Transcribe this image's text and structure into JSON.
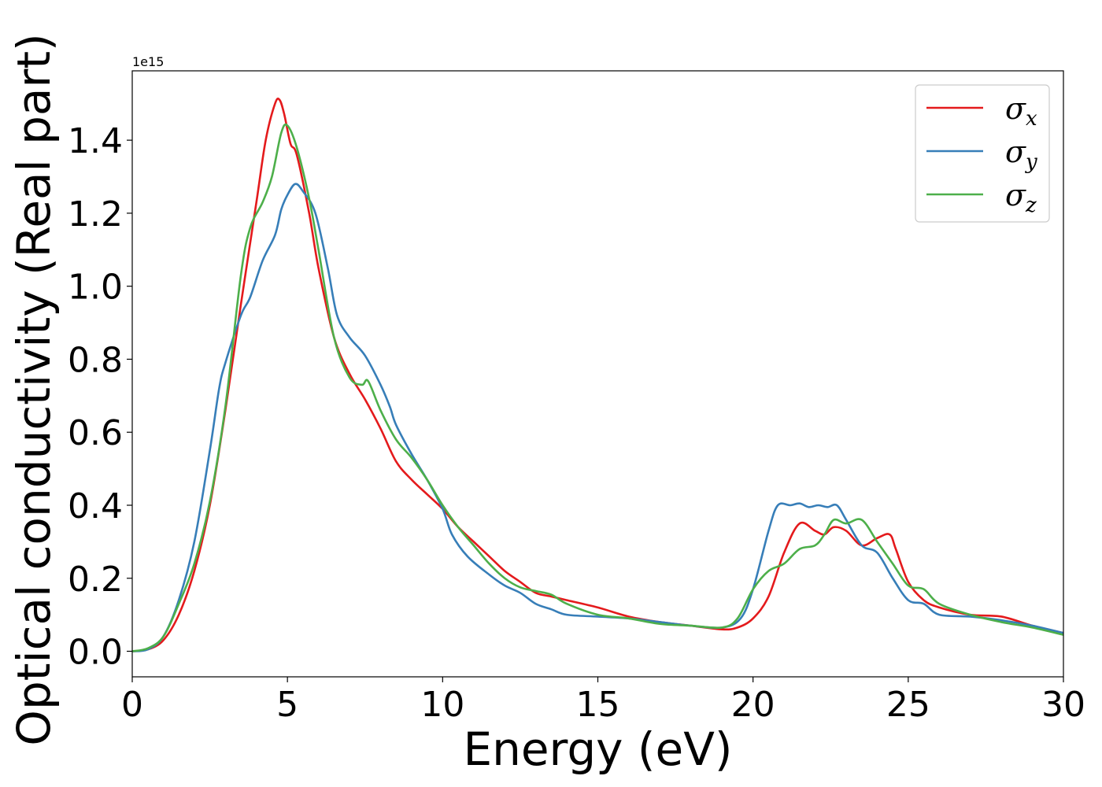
{
  "chart_data": {
    "type": "line",
    "xlabel": "Energy (eV)",
    "ylabel": "Optical conductivity (Real part)",
    "y_offset_label": "1e15",
    "xlim": [
      0,
      30
    ],
    "ylim": [
      -0.07,
      1.59
    ],
    "xticks": [
      0,
      5,
      10,
      15,
      20,
      25,
      30
    ],
    "xtick_labels": [
      "0",
      "5",
      "10",
      "15",
      "20",
      "25",
      "30"
    ],
    "yticks": [
      0.0,
      0.2,
      0.4,
      0.6,
      0.8,
      1.0,
      1.2,
      1.4
    ],
    "ytick_labels": [
      "0.0",
      "0.2",
      "0.4",
      "0.6",
      "0.8",
      "1.0",
      "1.2",
      "1.4"
    ],
    "grid": false,
    "legend_position": "top-right",
    "series": [
      {
        "name": "σx",
        "symbol": "σ",
        "subscript": "x",
        "color": "#e41a1c",
        "points": [
          [
            0,
            0.0
          ],
          [
            0.5,
            0.005
          ],
          [
            1.0,
            0.03
          ],
          [
            1.5,
            0.1
          ],
          [
            2.0,
            0.22
          ],
          [
            2.5,
            0.4
          ],
          [
            3.0,
            0.66
          ],
          [
            3.5,
            0.95
          ],
          [
            4.0,
            1.23
          ],
          [
            4.3,
            1.4
          ],
          [
            4.6,
            1.5
          ],
          [
            4.75,
            1.51
          ],
          [
            4.9,
            1.47
          ],
          [
            5.1,
            1.39
          ],
          [
            5.3,
            1.36
          ],
          [
            5.7,
            1.2
          ],
          [
            6.0,
            1.05
          ],
          [
            6.5,
            0.86
          ],
          [
            7.0,
            0.76
          ],
          [
            7.5,
            0.69
          ],
          [
            8.0,
            0.61
          ],
          [
            8.5,
            0.52
          ],
          [
            9.0,
            0.47
          ],
          [
            9.5,
            0.43
          ],
          [
            10.0,
            0.39
          ],
          [
            10.5,
            0.34
          ],
          [
            11.0,
            0.3
          ],
          [
            11.5,
            0.26
          ],
          [
            12.0,
            0.22
          ],
          [
            12.5,
            0.19
          ],
          [
            13.0,
            0.16
          ],
          [
            13.5,
            0.15
          ],
          [
            14.0,
            0.14
          ],
          [
            15.0,
            0.12
          ],
          [
            16.0,
            0.095
          ],
          [
            17.0,
            0.08
          ],
          [
            18.0,
            0.07
          ],
          [
            19.0,
            0.06
          ],
          [
            19.5,
            0.065
          ],
          [
            20.0,
            0.09
          ],
          [
            20.5,
            0.15
          ],
          [
            21.0,
            0.27
          ],
          [
            21.5,
            0.35
          ],
          [
            22.0,
            0.33
          ],
          [
            22.3,
            0.32
          ],
          [
            22.6,
            0.34
          ],
          [
            23.0,
            0.33
          ],
          [
            23.5,
            0.29
          ],
          [
            24.0,
            0.31
          ],
          [
            24.4,
            0.32
          ],
          [
            24.6,
            0.28
          ],
          [
            25.0,
            0.19
          ],
          [
            25.5,
            0.14
          ],
          [
            26.0,
            0.12
          ],
          [
            27.0,
            0.1
          ],
          [
            28.0,
            0.095
          ],
          [
            29.0,
            0.07
          ],
          [
            30.0,
            0.05
          ]
        ]
      },
      {
        "name": "σy",
        "symbol": "σ",
        "subscript": "y",
        "color": "#377eb8",
        "points": [
          [
            0,
            0.0
          ],
          [
            0.5,
            0.005
          ],
          [
            1.0,
            0.04
          ],
          [
            1.5,
            0.14
          ],
          [
            2.0,
            0.3
          ],
          [
            2.5,
            0.55
          ],
          [
            2.8,
            0.72
          ],
          [
            3.0,
            0.79
          ],
          [
            3.5,
            0.92
          ],
          [
            3.8,
            0.97
          ],
          [
            4.2,
            1.07
          ],
          [
            4.6,
            1.14
          ],
          [
            4.8,
            1.21
          ],
          [
            5.0,
            1.25
          ],
          [
            5.25,
            1.28
          ],
          [
            5.5,
            1.26
          ],
          [
            5.9,
            1.2
          ],
          [
            6.3,
            1.05
          ],
          [
            6.6,
            0.92
          ],
          [
            7.0,
            0.86
          ],
          [
            7.5,
            0.81
          ],
          [
            8.0,
            0.73
          ],
          [
            8.3,
            0.67
          ],
          [
            8.5,
            0.62
          ],
          [
            9.0,
            0.54
          ],
          [
            9.5,
            0.47
          ],
          [
            10.0,
            0.39
          ],
          [
            10.3,
            0.32
          ],
          [
            10.8,
            0.26
          ],
          [
            11.5,
            0.21
          ],
          [
            12.0,
            0.18
          ],
          [
            12.5,
            0.16
          ],
          [
            13.0,
            0.13
          ],
          [
            13.5,
            0.115
          ],
          [
            14.0,
            0.1
          ],
          [
            15.0,
            0.095
          ],
          [
            16.0,
            0.09
          ],
          [
            17.0,
            0.08
          ],
          [
            18.0,
            0.07
          ],
          [
            19.0,
            0.065
          ],
          [
            19.6,
            0.09
          ],
          [
            20.0,
            0.17
          ],
          [
            20.5,
            0.33
          ],
          [
            20.8,
            0.4
          ],
          [
            21.2,
            0.4
          ],
          [
            21.5,
            0.405
          ],
          [
            21.8,
            0.395
          ],
          [
            22.1,
            0.4
          ],
          [
            22.4,
            0.395
          ],
          [
            22.7,
            0.4
          ],
          [
            23.0,
            0.36
          ],
          [
            23.5,
            0.29
          ],
          [
            24.0,
            0.27
          ],
          [
            24.5,
            0.2
          ],
          [
            25.0,
            0.14
          ],
          [
            25.5,
            0.13
          ],
          [
            26.0,
            0.1
          ],
          [
            27.0,
            0.095
          ],
          [
            28.0,
            0.085
          ],
          [
            29.0,
            0.07
          ],
          [
            30.0,
            0.05
          ]
        ]
      },
      {
        "name": "σz",
        "symbol": "σ",
        "subscript": "z",
        "color": "#4daf4a",
        "points": [
          [
            0,
            0.0
          ],
          [
            0.5,
            0.008
          ],
          [
            1.0,
            0.04
          ],
          [
            1.5,
            0.13
          ],
          [
            2.0,
            0.24
          ],
          [
            2.5,
            0.41
          ],
          [
            3.0,
            0.67
          ],
          [
            3.5,
            1.03
          ],
          [
            3.8,
            1.16
          ],
          [
            4.2,
            1.23
          ],
          [
            4.5,
            1.3
          ],
          [
            4.8,
            1.42
          ],
          [
            5.0,
            1.44
          ],
          [
            5.3,
            1.38
          ],
          [
            5.7,
            1.24
          ],
          [
            6.0,
            1.1
          ],
          [
            6.5,
            0.86
          ],
          [
            7.0,
            0.75
          ],
          [
            7.4,
            0.73
          ],
          [
            7.6,
            0.74
          ],
          [
            8.0,
            0.66
          ],
          [
            8.5,
            0.58
          ],
          [
            9.0,
            0.53
          ],
          [
            9.5,
            0.47
          ],
          [
            10.0,
            0.4
          ],
          [
            10.5,
            0.34
          ],
          [
            11.0,
            0.29
          ],
          [
            11.5,
            0.24
          ],
          [
            12.0,
            0.2
          ],
          [
            12.5,
            0.175
          ],
          [
            13.0,
            0.165
          ],
          [
            13.5,
            0.155
          ],
          [
            14.0,
            0.13
          ],
          [
            15.0,
            0.1
          ],
          [
            16.0,
            0.09
          ],
          [
            17.0,
            0.075
          ],
          [
            18.0,
            0.07
          ],
          [
            19.0,
            0.065
          ],
          [
            19.5,
            0.09
          ],
          [
            20.0,
            0.17
          ],
          [
            20.5,
            0.22
          ],
          [
            21.0,
            0.24
          ],
          [
            21.5,
            0.28
          ],
          [
            22.0,
            0.29
          ],
          [
            22.3,
            0.32
          ],
          [
            22.6,
            0.36
          ],
          [
            23.0,
            0.35
          ],
          [
            23.5,
            0.36
          ],
          [
            24.0,
            0.3
          ],
          [
            24.5,
            0.24
          ],
          [
            25.0,
            0.18
          ],
          [
            25.5,
            0.17
          ],
          [
            26.0,
            0.13
          ],
          [
            27.0,
            0.1
          ],
          [
            28.0,
            0.08
          ],
          [
            29.0,
            0.065
          ],
          [
            30.0,
            0.045
          ]
        ]
      }
    ]
  }
}
